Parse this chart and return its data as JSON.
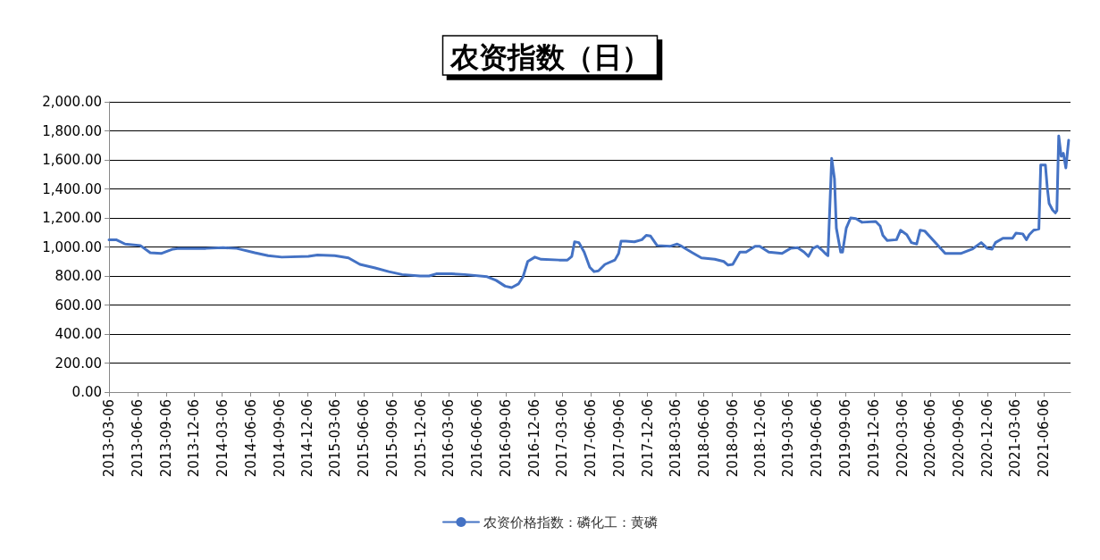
{
  "chart_data": {
    "type": "line",
    "title": "农资指数（日）",
    "marker": "none",
    "line_style": "solid",
    "grid": "y",
    "legend": "bottom",
    "ylim": [
      0,
      2000
    ],
    "yticks": [
      {
        "value": 0,
        "label": "0.00"
      },
      {
        "value": 200,
        "label": "200.00"
      },
      {
        "value": 400,
        "label": "400.00"
      },
      {
        "value": 600,
        "label": "600.00"
      },
      {
        "value": 800,
        "label": "800.00"
      },
      {
        "value": 1000,
        "label": "1,000.00"
      },
      {
        "value": 1200,
        "label": "1,200.00"
      },
      {
        "value": 1400,
        "label": "1,400.00"
      },
      {
        "value": 1600,
        "label": "1,600.00"
      },
      {
        "value": 1800,
        "label": "1,800.00"
      },
      {
        "value": 2000,
        "label": "2,000.00"
      }
    ],
    "xlim": [
      "2013-03-06",
      "2021-08-31"
    ],
    "xticks": [
      "2013-03-06",
      "2013-06-06",
      "2013-09-06",
      "2013-12-06",
      "2014-03-06",
      "2014-06-06",
      "2014-09-06",
      "2014-12-06",
      "2015-03-06",
      "2015-06-06",
      "2015-09-06",
      "2015-12-06",
      "2016-03-06",
      "2016-06-06",
      "2016-09-06",
      "2016-12-06",
      "2017-03-06",
      "2017-06-06",
      "2017-09-06",
      "2017-12-06",
      "2018-03-06",
      "2018-06-06",
      "2018-09-06",
      "2018-12-06",
      "2019-03-06",
      "2019-06-06",
      "2019-09-06",
      "2019-12-06",
      "2020-03-06",
      "2020-06-06",
      "2020-09-06",
      "2020-12-06",
      "2021-03-06",
      "2021-06-06"
    ],
    "series": [
      {
        "name": "农资价格指数：磷化工：黄磷",
        "color": "#4472c4",
        "x": [
          "2013-03-06",
          "2013-03-29",
          "2013-04-27",
          "2013-06-15",
          "2013-07-17",
          "2013-08-21",
          "2013-09-28",
          "2013-10-17",
          "2014-01-12",
          "2014-03-09",
          "2014-04-22",
          "2014-06-19",
          "2014-08-01",
          "2014-09-14",
          "2014-12-09",
          "2015-01-07",
          "2015-03-04",
          "2015-04-17",
          "2015-05-24",
          "2015-07-12",
          "2015-08-25",
          "2015-10-07",
          "2015-12-04",
          "2016-01-02",
          "2016-01-25",
          "2016-03-14",
          "2016-04-26",
          "2016-07-07",
          "2016-08-05",
          "2016-09-03",
          "2016-09-24",
          "2016-10-16",
          "2016-10-31",
          "2016-11-15",
          "2016-12-08",
          "2016-12-28",
          "2017-02-24",
          "2017-03-23",
          "2017-04-06",
          "2017-04-15",
          "2017-04-29",
          "2017-05-16",
          "2017-06-03",
          "2017-06-17",
          "2017-07-01",
          "2017-07-22",
          "2017-08-23",
          "2017-09-04",
          "2017-09-12",
          "2017-09-27",
          "2017-10-25",
          "2017-11-18",
          "2017-12-02",
          "2017-12-16",
          "2018-01-06",
          "2018-02-18",
          "2018-03-12",
          "2018-03-26",
          "2018-04-30",
          "2018-05-29",
          "2018-07-11",
          "2018-08-09",
          "2018-08-23",
          "2018-09-07",
          "2018-09-30",
          "2018-10-20",
          "2018-11-18",
          "2018-12-03",
          "2019-01-01",
          "2019-02-13",
          "2019-03-12",
          "2019-04-04",
          "2019-04-25",
          "2019-05-09",
          "2019-05-23",
          "2019-06-07",
          "2019-06-21",
          "2019-07-05",
          "2019-07-11",
          "2019-07-23",
          "2019-08-01",
          "2019-08-07",
          "2019-08-21",
          "2019-08-27",
          "2019-09-08",
          "2019-09-22",
          "2019-10-09",
          "2019-10-29",
          "2019-12-12",
          "2019-12-26",
          "2020-01-04",
          "2020-01-18",
          "2020-02-17",
          "2020-03-01",
          "2020-03-21",
          "2020-04-05",
          "2020-04-22",
          "2020-05-03",
          "2020-05-18",
          "2020-07-23",
          "2020-09-11",
          "2020-10-18",
          "2020-11-16",
          "2020-12-06",
          "2020-12-21",
          "2021-01-01",
          "2021-01-25",
          "2021-02-25",
          "2021-03-08",
          "2021-03-30",
          "2021-04-11",
          "2021-04-20",
          "2021-05-04",
          "2021-05-21",
          "2021-05-27",
          "2021-06-11",
          "2021-06-17",
          "2021-06-23",
          "2021-07-04",
          "2021-07-13",
          "2021-07-18",
          "2021-07-24",
          "2021-08-01",
          "2021-08-08",
          "2021-08-16",
          "2021-08-25"
        ],
        "values": [
          1050,
          1050,
          1020,
          1010,
          960,
          955,
          985,
          990,
          990,
          995,
          990,
          960,
          940,
          930,
          935,
          945,
          940,
          925,
          880,
          855,
          830,
          810,
          800,
          800,
          815,
          815,
          810,
          795,
          770,
          730,
          720,
          745,
          795,
          900,
          930,
          915,
          910,
          910,
          935,
          1035,
          1030,
          965,
          860,
          830,
          835,
          880,
          910,
          955,
          1040,
          1040,
          1035,
          1050,
          1080,
          1075,
          1010,
          1005,
          1020,
          1005,
          960,
          925,
          915,
          900,
          875,
          880,
          965,
          965,
          1005,
          1005,
          965,
          955,
          990,
          995,
          965,
          935,
          990,
          1005,
          980,
          950,
          940,
          1610,
          1470,
          1130,
          965,
          965,
          1130,
          1200,
          1195,
          1170,
          1175,
          1145,
          1080,
          1045,
          1050,
          1115,
          1085,
          1030,
          1020,
          1115,
          1110,
          955,
          955,
          985,
          1030,
          990,
          985,
          1030,
          1060,
          1060,
          1095,
          1090,
          1050,
          1085,
          1115,
          1125,
          1565,
          1565,
          1410,
          1300,
          1255,
          1235,
          1250,
          1765,
          1625,
          1645,
          1545,
          1735
        ]
      }
    ]
  }
}
